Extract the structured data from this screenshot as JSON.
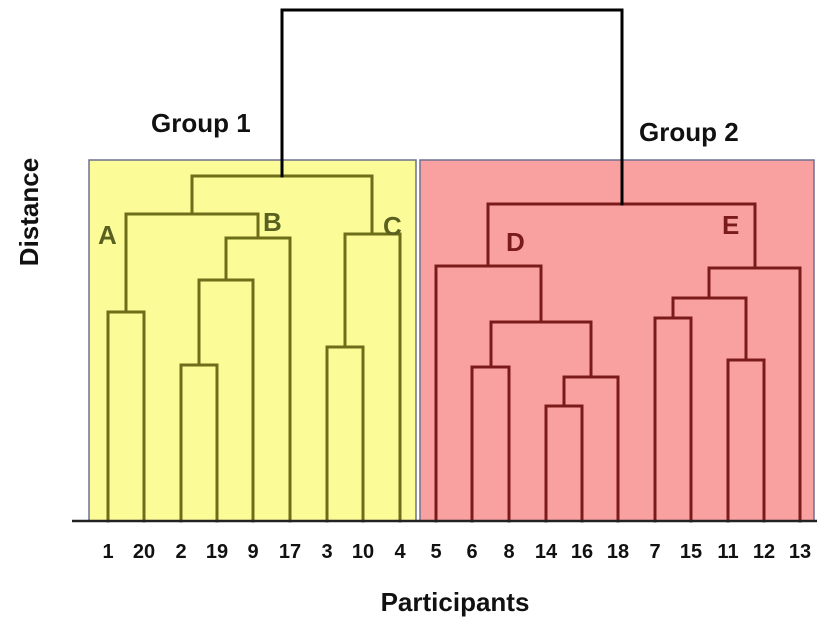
{
  "diagram": {
    "axis_y_label": "Distance",
    "axis_x_label": "Participants",
    "groups": [
      {
        "label": "Group 1",
        "fill": "#fbfb98",
        "stroke": "#6d7090",
        "line_color": "#6d6d1a"
      },
      {
        "label": "Group 2",
        "fill": "#f9a1a1",
        "stroke": "#6d7090",
        "line_color": "#7a1a1a"
      }
    ],
    "clusters": [
      {
        "label": "A",
        "color": "#5a6020"
      },
      {
        "label": "B",
        "color": "#5a6020"
      },
      {
        "label": "C",
        "color": "#5a6020"
      },
      {
        "label": "D",
        "color": "#7a1a1a"
      },
      {
        "label": "E",
        "color": "#7a1a1a"
      }
    ],
    "leaves": [
      "1",
      "20",
      "2",
      "19",
      "9",
      "17",
      "3",
      "10",
      "4",
      "5",
      "6",
      "8",
      "14",
      "16",
      "18",
      "7",
      "15",
      "11",
      "12",
      "13"
    ],
    "root_line_color": "#000000"
  }
}
